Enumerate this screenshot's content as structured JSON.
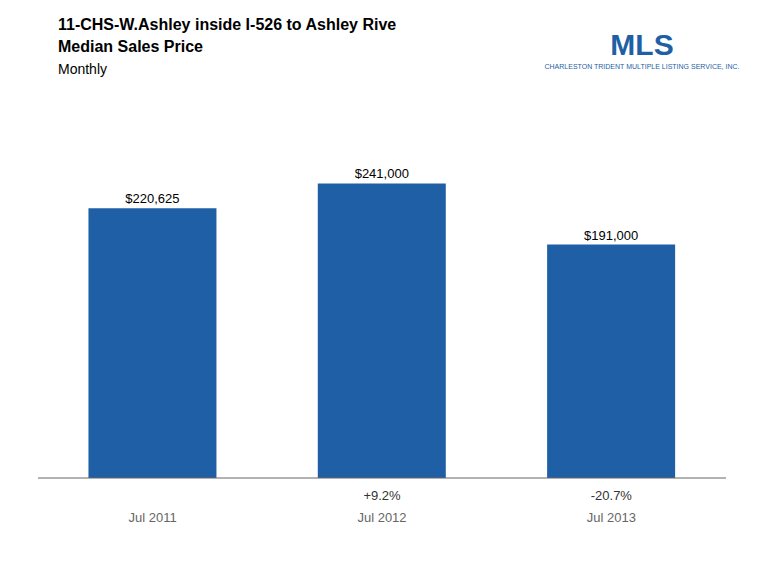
{
  "chart_data": {
    "type": "bar",
    "title": "11-CHS-W.Ashley inside I-526 to Ashley Rive\nMedian Sales Price",
    "subtitle": "Monthly",
    "categories": [
      "Jul 2011",
      "Jul 2012",
      "Jul 2013"
    ],
    "values": [
      220625,
      241000,
      191000
    ],
    "value_labels": [
      "$220,625",
      "$241,000",
      "$191,000"
    ],
    "data_labels": true,
    "pct_labels": [
      null,
      "+9.2%",
      "-20.7%"
    ],
    "color": "#1F5FA6",
    "ylim": [
      0,
      270000
    ],
    "grid": false,
    "tick_labels": "x",
    "annotations": [
      "CHARLESTON TRIDENT MULTIPLE LISTING SERVICE, INC.",
      "MLS"
    ]
  }
}
